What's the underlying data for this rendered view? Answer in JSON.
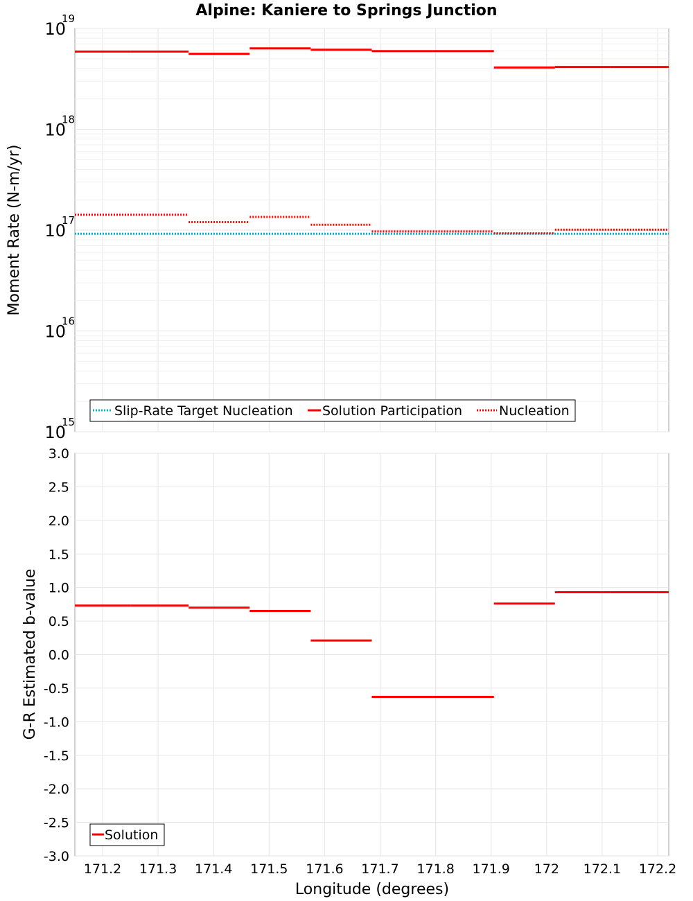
{
  "title": "Alpine: Kaniere to Springs Junction",
  "colors": {
    "participation": "#ff0000",
    "nucleation": "#ff0000",
    "target": "#00b4c8"
  },
  "chart_data": [
    {
      "type": "line",
      "title": "Alpine: Kaniere to Springs Junction",
      "ylabel": "Moment Rate (N-m/yr)",
      "xlabel": "",
      "yscale": "log",
      "ylim": [
        1000000000000000.0,
        1e+19
      ],
      "xlim": [
        171.15,
        172.22
      ],
      "y_ticks": [
        {
          "base": "10",
          "exp": "15",
          "value": 1000000000000000.0
        },
        {
          "base": "10",
          "exp": "16",
          "value": 1e+16
        },
        {
          "base": "10",
          "exp": "17",
          "value": 1e+17
        },
        {
          "base": "10",
          "exp": "18",
          "value": 1e+18
        },
        {
          "base": "10",
          "exp": "19",
          "value": 1e+19
        }
      ],
      "grid": true,
      "legend_position": "bottom-left",
      "series": [
        {
          "name": "Slip-Rate Target Nucleation",
          "style": "dotted",
          "color": "#00b4c8",
          "segments": [
            {
              "x0": 171.15,
              "x1": 172.22,
              "y": 9.2e+16
            }
          ]
        },
        {
          "name": "Solution Participation",
          "style": "solid",
          "color": "#ff0000",
          "segments": [
            {
              "x0": 171.15,
              "x1": 171.25,
              "y": 5.9e+18
            },
            {
              "x0": 171.25,
              "x1": 171.355,
              "y": 5.9e+18
            },
            {
              "x0": 171.355,
              "x1": 171.465,
              "y": 5.6e+18
            },
            {
              "x0": 171.465,
              "x1": 171.575,
              "y": 6.35e+18
            },
            {
              "x0": 171.575,
              "x1": 171.685,
              "y": 6.15e+18
            },
            {
              "x0": 171.685,
              "x1": 171.795,
              "y": 5.95e+18
            },
            {
              "x0": 171.795,
              "x1": 171.905,
              "y": 5.95e+18
            },
            {
              "x0": 171.905,
              "x1": 172.015,
              "y": 4.1e+18
            },
            {
              "x0": 172.015,
              "x1": 172.115,
              "y": 4.15e+18
            },
            {
              "x0": 172.115,
              "x1": 172.22,
              "y": 4.15e+18
            }
          ]
        },
        {
          "name": "Nucleation",
          "style": "dotted",
          "color": "#ff0000",
          "segments": [
            {
              "x0": 171.15,
              "x1": 171.25,
              "y": 1.42e+17
            },
            {
              "x0": 171.25,
              "x1": 171.355,
              "y": 1.42e+17
            },
            {
              "x0": 171.355,
              "x1": 171.465,
              "y": 1.2e+17
            },
            {
              "x0": 171.465,
              "x1": 171.575,
              "y": 1.35e+17
            },
            {
              "x0": 171.575,
              "x1": 171.685,
              "y": 1.13e+17
            },
            {
              "x0": 171.685,
              "x1": 171.795,
              "y": 9.7e+16
            },
            {
              "x0": 171.795,
              "x1": 171.905,
              "y": 9.7e+16
            },
            {
              "x0": 171.905,
              "x1": 172.015,
              "y": 9.3e+16
            },
            {
              "x0": 172.015,
              "x1": 172.115,
              "y": 1.01e+17
            },
            {
              "x0": 172.115,
              "x1": 172.22,
              "y": 1.01e+17
            }
          ]
        }
      ]
    },
    {
      "type": "line",
      "title": "",
      "ylabel": "G-R Estimated b-value",
      "xlabel": "Longitude (degrees)",
      "ylim": [
        -3.0,
        3.0
      ],
      "xlim": [
        171.15,
        172.22
      ],
      "y_ticks": [
        "3.0",
        "2.5",
        "2.0",
        "1.5",
        "1.0",
        "0.5",
        "0.0",
        "-0.5",
        "-1.0",
        "-1.5",
        "-2.0",
        "-2.5",
        "-3.0"
      ],
      "x_ticks": [
        "171.2",
        "171.3",
        "171.4",
        "171.5",
        "171.6",
        "171.7",
        "171.8",
        "171.9",
        "172",
        "172.1",
        "172.2"
      ],
      "grid": true,
      "legend_position": "bottom-left",
      "series": [
        {
          "name": "Solution",
          "style": "solid",
          "color": "#ff0000",
          "segments": [
            {
              "x0": 171.15,
              "x1": 171.25,
              "y": 0.73
            },
            {
              "x0": 171.25,
              "x1": 171.355,
              "y": 0.73
            },
            {
              "x0": 171.355,
              "x1": 171.465,
              "y": 0.7
            },
            {
              "x0": 171.465,
              "x1": 171.575,
              "y": 0.65
            },
            {
              "x0": 171.575,
              "x1": 171.685,
              "y": 0.21
            },
            {
              "x0": 171.685,
              "x1": 171.795,
              "y": -0.63
            },
            {
              "x0": 171.795,
              "x1": 171.905,
              "y": -0.63
            },
            {
              "x0": 171.905,
              "x1": 172.015,
              "y": 0.76
            },
            {
              "x0": 172.015,
              "x1": 172.115,
              "y": 0.93
            },
            {
              "x0": 172.115,
              "x1": 172.22,
              "y": 0.93
            }
          ]
        }
      ]
    }
  ]
}
